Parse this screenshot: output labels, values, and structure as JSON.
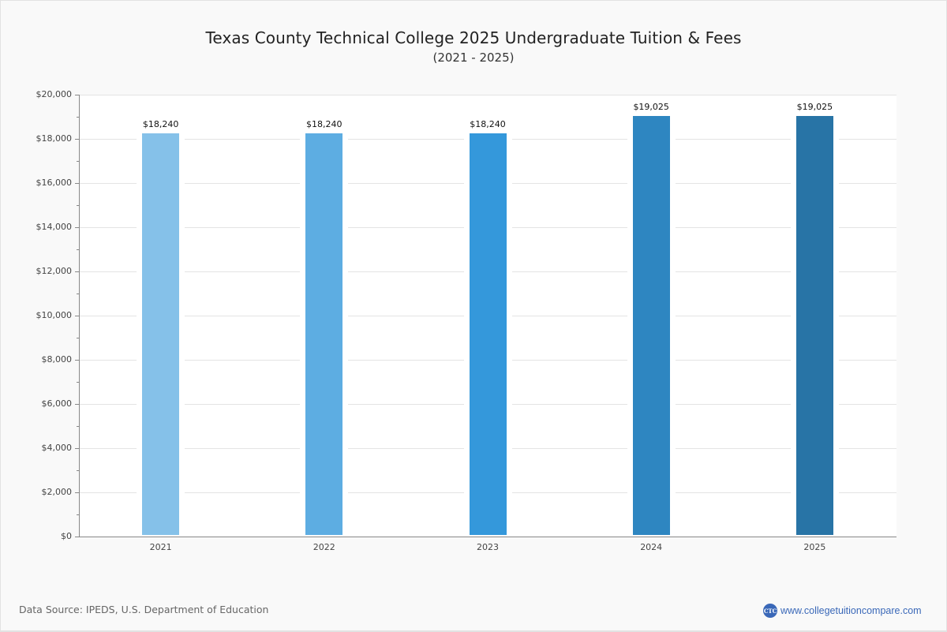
{
  "header": {
    "title": "Texas County Technical College 2025 Undergraduate Tuition & Fees",
    "subtitle": "(2021 - 2025)"
  },
  "y_axis": {
    "ticks": [
      "$0",
      "$2,000",
      "$4,000",
      "$6,000",
      "$8,000",
      "$10,000",
      "$12,000",
      "$14,000",
      "$16,000",
      "$18,000",
      "$20,000"
    ]
  },
  "bars": [
    {
      "year": "2021",
      "label": "$18,240",
      "value": 18240,
      "color": "#85c1e9"
    },
    {
      "year": "2022",
      "label": "$18,240",
      "value": 18240,
      "color": "#5dade2"
    },
    {
      "year": "2023",
      "label": "$18,240",
      "value": 18240,
      "color": "#3498db"
    },
    {
      "year": "2024",
      "label": "$19,025",
      "value": 19025,
      "color": "#2e86c1"
    },
    {
      "year": "2025",
      "label": "$19,025",
      "value": 19025,
      "color": "#2874a6"
    }
  ],
  "footer": {
    "source": "Data Source: IPEDS, U.S. Department of Education",
    "brand_logo": "CTC",
    "brand_url": "www.collegetuitioncompare.com"
  },
  "chart_data": {
    "type": "bar",
    "title": "Texas County Technical College 2025 Undergraduate Tuition & Fees",
    "subtitle": "(2021 - 2025)",
    "categories": [
      "2021",
      "2022",
      "2023",
      "2024",
      "2025"
    ],
    "values": [
      18240,
      18240,
      18240,
      19025,
      19025
    ],
    "data_labels": [
      "$18,240",
      "$18,240",
      "$18,240",
      "$19,025",
      "$19,025"
    ],
    "colors": [
      "#85c1e9",
      "#5dade2",
      "#3498db",
      "#2e86c1",
      "#2874a6"
    ],
    "xlabel": "",
    "ylabel": "",
    "ylim": [
      0,
      20000
    ],
    "y_tick_step": 2000,
    "grid": true,
    "legend": "none"
  }
}
